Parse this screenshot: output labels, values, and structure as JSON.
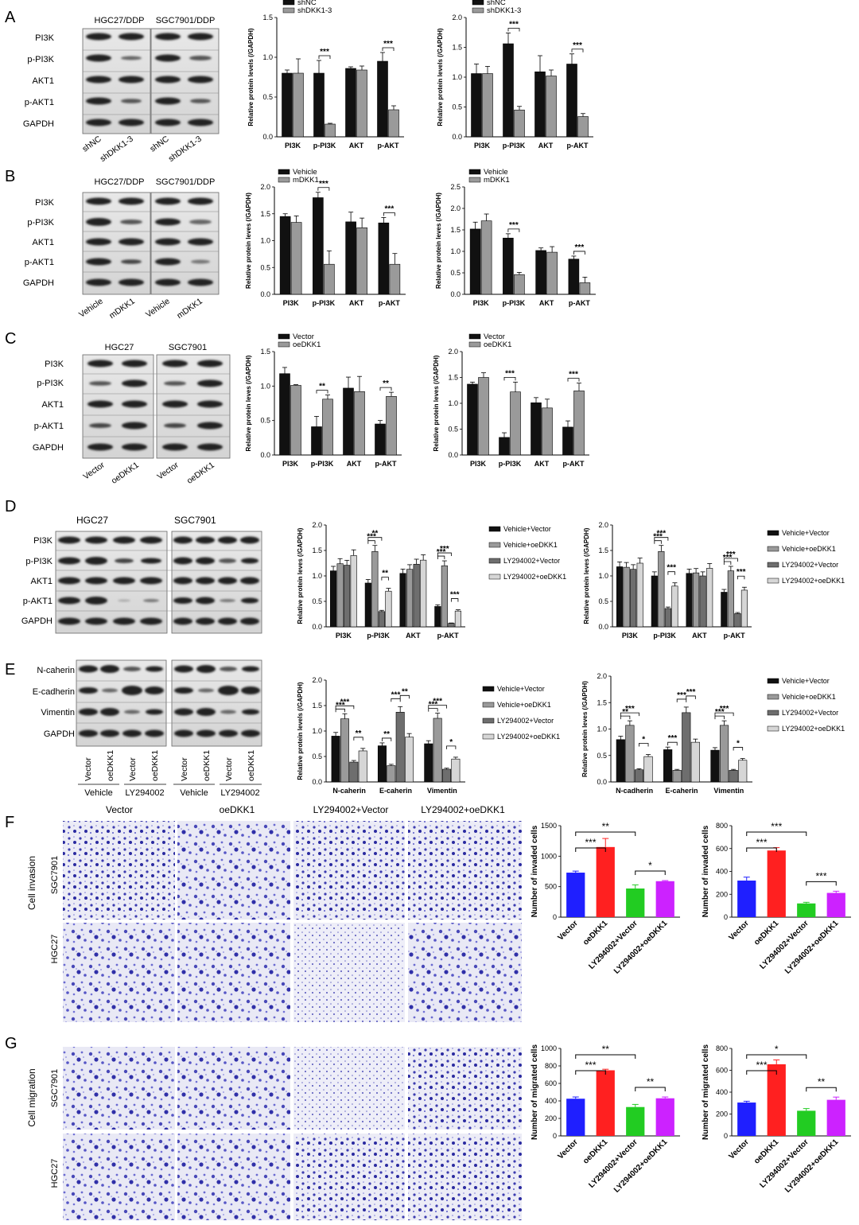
{
  "blots": {
    "A": {
      "letter": "A",
      "groups": [
        "HGC27/DDP",
        "SGC7901/DDP"
      ],
      "rows": [
        "PI3K",
        "p-PI3K",
        "AKT1",
        "p-AKT1",
        "GAPDH"
      ],
      "lanes": [
        "shNC",
        "shDKK1-3",
        "shNC",
        "shDKK1-3"
      ]
    },
    "B": {
      "letter": "B",
      "groups": [
        "HGC27/DDP",
        "SGC7901/DDP"
      ],
      "rows": [
        "PI3K",
        "p-PI3K",
        "AKT1",
        "p-AKT1",
        "GAPDH"
      ],
      "lanes": [
        "Vehicle",
        "mDKK1",
        "Vehicle",
        "mDKK1"
      ]
    },
    "C": {
      "letter": "C",
      "groups": [
        "HGC27",
        "SGC7901"
      ],
      "rows": [
        "PI3K",
        "p-PI3K",
        "AKT1",
        "p-AKT1",
        "GAPDH"
      ],
      "lanes": [
        "Vector",
        "oeDKK1",
        "Vector",
        "oeDKK1"
      ]
    },
    "D": {
      "letter": "D",
      "groups": [
        "HGC27",
        "SGC7901"
      ],
      "rows": [
        "PI3K",
        "p-PI3K",
        "AKT1",
        "p-AKT1",
        "GAPDH"
      ]
    },
    "E": {
      "letter": "E",
      "rows": [
        "N-caherin",
        "E-cadherin",
        "Vimentin",
        "GAPDH"
      ],
      "lanes": [
        "Vector",
        "oeDKK1",
        "Vector",
        "oeDKK1",
        "Vector",
        "oeDKK1",
        "Vector",
        "oeDKK1"
      ],
      "treatments": [
        "Vehicle",
        "LY294002",
        "Vehicle",
        "LY294002"
      ]
    },
    "F": {
      "letter": "F",
      "columns": [
        "Vector",
        "oeDKK1",
        "LY294002+Vector",
        "LY294002+oeDKK1"
      ],
      "side": "Cell invasion",
      "rows": [
        "SGC7901",
        "HGC27"
      ]
    },
    "G": {
      "letter": "G",
      "side": "Cell migration",
      "rows": [
        "SGC7901",
        "HGC27"
      ]
    }
  },
  "colors": {
    "dark": "#111111",
    "grey": "#9a9a9a",
    "mid": "#6e6e6e",
    "light": "#d6d6d6",
    "blue": "#1f1fff",
    "red": "#ff2020",
    "green": "#22cc22",
    "purple": "#cc22ff"
  },
  "chart_data": [
    {
      "id": "A1",
      "type": "bar",
      "ylabel": "Relative protein levels (/GAPDH)",
      "categories": [
        "PI3K",
        "p-PI3K",
        "AKT",
        "p-AKT"
      ],
      "ylim": [
        0,
        1.5
      ],
      "yticks": [
        "0.0",
        "0.5",
        "1.0",
        "1.5"
      ],
      "series": [
        {
          "name": "shNC",
          "values": [
            0.8,
            0.8,
            0.86,
            0.95
          ],
          "err": [
            0.04,
            0.16,
            0.02,
            0.11
          ]
        },
        {
          "name": "shDKK1-3",
          "values": [
            0.8,
            0.16,
            0.84,
            0.34
          ],
          "err": [
            0.18,
            0.01,
            0.05,
            0.05
          ]
        }
      ],
      "sig": [
        {
          "c": 1,
          "label": "***"
        },
        {
          "c": 3,
          "label": "***"
        }
      ]
    },
    {
      "id": "A2",
      "type": "bar",
      "ylabel": "Relative protein levels (/GAPDH)",
      "categories": [
        "PI3K",
        "p-PI3K",
        "AKT",
        "p-AKT"
      ],
      "ylim": [
        0,
        2.0
      ],
      "yticks": [
        "0.0",
        "0.5",
        "1.0",
        "1.5",
        "2.0"
      ],
      "series": [
        {
          "name": "shNC",
          "values": [
            1.06,
            1.56,
            1.09,
            1.22
          ],
          "err": [
            0.16,
            0.18,
            0.27,
            0.17
          ]
        },
        {
          "name": "shDKK1-3",
          "values": [
            1.06,
            0.45,
            1.02,
            0.34
          ],
          "err": [
            0.12,
            0.06,
            0.1,
            0.05
          ]
        }
      ],
      "sig": [
        {
          "c": 1,
          "label": "***"
        },
        {
          "c": 3,
          "label": "***"
        }
      ]
    },
    {
      "id": "B1",
      "type": "bar",
      "ylabel": "Relative protein leves (/GAPDH)",
      "categories": [
        "PI3K",
        "p-PI3K",
        "AKT",
        "p-AKT"
      ],
      "ylim": [
        0,
        2.0
      ],
      "yticks": [
        "0.0",
        "0.5",
        "1.0",
        "1.5",
        "2.0"
      ],
      "series": [
        {
          "name": "Vehicle",
          "values": [
            1.45,
            1.8,
            1.35,
            1.33
          ],
          "err": [
            0.05,
            0.1,
            0.18,
            0.1
          ]
        },
        {
          "name": "mDKK1",
          "values": [
            1.34,
            0.56,
            1.24,
            0.56
          ],
          "err": [
            0.12,
            0.25,
            0.18,
            0.2
          ]
        }
      ],
      "sig": [
        {
          "c": 1,
          "label": "***"
        },
        {
          "c": 3,
          "label": "***"
        }
      ]
    },
    {
      "id": "B2",
      "type": "bar",
      "ylabel": "Relative protein leves (/GAPDH)",
      "categories": [
        "PI3K",
        "p-PI3K",
        "AKT",
        "p-AKT"
      ],
      "ylim": [
        0,
        2.5
      ],
      "yticks": [
        "0.0",
        "0.5",
        "1.0",
        "1.5",
        "2.0",
        "2.5"
      ],
      "series": [
        {
          "name": "Vehicle",
          "values": [
            1.52,
            1.31,
            1.02,
            0.82
          ],
          "err": [
            0.16,
            0.1,
            0.06,
            0.07
          ]
        },
        {
          "name": "mDKK1",
          "values": [
            1.71,
            0.46,
            0.98,
            0.27
          ],
          "err": [
            0.16,
            0.05,
            0.13,
            0.13
          ]
        }
      ],
      "sig": [
        {
          "c": 1,
          "label": "***"
        },
        {
          "c": 3,
          "label": "***"
        }
      ]
    },
    {
      "id": "C1",
      "type": "bar",
      "ylabel": "Relative protein leves (/GAPDH)",
      "categories": [
        "PI3K",
        "p-PI3K",
        "AKT",
        "p-AKT"
      ],
      "ylim": [
        0,
        1.5
      ],
      "yticks": [
        "0.0",
        "0.5",
        "1.0",
        "1.5"
      ],
      "series": [
        {
          "name": "Vector",
          "values": [
            1.18,
            0.41,
            0.97,
            0.45
          ],
          "err": [
            0.09,
            0.15,
            0.16,
            0.05
          ]
        },
        {
          "name": "oeDKK1",
          "values": [
            1.01,
            0.81,
            0.92,
            0.85
          ],
          "err": [
            0.01,
            0.06,
            0.22,
            0.06
          ]
        }
      ],
      "sig": [
        {
          "c": 1,
          "label": "**"
        },
        {
          "c": 3,
          "label": "**"
        }
      ]
    },
    {
      "id": "C2",
      "type": "bar",
      "ylabel": "Relative protein leves (/GAPDH)",
      "categories": [
        "PI3K",
        "p-PI3K",
        "AKT",
        "p-AKT"
      ],
      "ylim": [
        0,
        2.0
      ],
      "yticks": [
        "0.0",
        "0.5",
        "1.0",
        "1.5",
        "2.0"
      ],
      "series": [
        {
          "name": "Vector",
          "values": [
            1.37,
            0.34,
            1.01,
            0.54
          ],
          "err": [
            0.04,
            0.09,
            0.1,
            0.12
          ]
        },
        {
          "name": "oeDKK1",
          "values": [
            1.5,
            1.22,
            0.91,
            1.24
          ],
          "err": [
            0.09,
            0.19,
            0.17,
            0.15
          ]
        }
      ],
      "sig": [
        {
          "c": 1,
          "label": "***"
        },
        {
          "c": 3,
          "label": "***"
        }
      ]
    },
    {
      "id": "D1",
      "type": "bar",
      "ylabel": "Relative protein leves (/GAPDH)",
      "categories": [
        "PI3K",
        "p-PI3K",
        "AKT",
        "p-AKT"
      ],
      "ylim": [
        0,
        2.0
      ],
      "yticks": [
        "0.0",
        "0.5",
        "1.0",
        "1.5",
        "2.0"
      ],
      "series": [
        {
          "name": "Vehicle+Vector",
          "values": [
            1.1,
            0.86,
            1.05,
            0.4
          ]
        },
        {
          "name": "Vehicle+oeDKK1",
          "values": [
            1.24,
            1.48,
            1.13,
            1.2
          ]
        },
        {
          "name": "LY294002+Vector",
          "values": [
            1.21,
            0.3,
            1.23,
            0.07
          ]
        },
        {
          "name": "LY294002+oeDKK1",
          "values": [
            1.4,
            0.7,
            1.31,
            0.31
          ]
        }
      ],
      "sig": [
        {
          "c": 1,
          "a": 0,
          "b": 1,
          "label": "***"
        },
        {
          "c": 1,
          "a": 0,
          "b": 2,
          "label": "**"
        },
        {
          "c": 1,
          "a": 2,
          "b": 3,
          "label": "**"
        },
        {
          "c": 3,
          "a": 0,
          "b": 1,
          "label": "***"
        },
        {
          "c": 3,
          "a": 0,
          "b": 2,
          "label": "***"
        },
        {
          "c": 3,
          "a": 2,
          "b": 3,
          "label": "***"
        }
      ]
    },
    {
      "id": "D2",
      "type": "bar",
      "ylabel": "Relative protein leves (/GAPDH)",
      "categories": [
        "PI3K",
        "p-PI3K",
        "AKT",
        "p-AKT"
      ],
      "ylim": [
        0,
        2.0
      ],
      "yticks": [
        "0.0",
        "0.5",
        "1.0",
        "1.5",
        "2.0"
      ],
      "series": [
        {
          "name": "Vehicle+Vector",
          "values": [
            1.18,
            1.0,
            1.05,
            0.68
          ]
        },
        {
          "name": "Vehicle+oeDKK1",
          "values": [
            1.17,
            1.48,
            1.06,
            1.1
          ]
        },
        {
          "name": "LY294002+Vector",
          "values": [
            1.13,
            0.36,
            1.0,
            0.26
          ]
        },
        {
          "name": "LY294002+oeDKK1",
          "values": [
            1.25,
            0.8,
            1.15,
            0.72
          ]
        }
      ],
      "sig": [
        {
          "c": 1,
          "a": 0,
          "b": 1,
          "label": "***"
        },
        {
          "c": 1,
          "a": 0,
          "b": 2,
          "label": "***"
        },
        {
          "c": 1,
          "a": 2,
          "b": 3,
          "label": "***"
        },
        {
          "c": 3,
          "a": 0,
          "b": 1,
          "label": "***"
        },
        {
          "c": 3,
          "a": 0,
          "b": 2,
          "label": "***"
        },
        {
          "c": 3,
          "a": 2,
          "b": 3,
          "label": "***"
        }
      ]
    },
    {
      "id": "E1",
      "type": "bar",
      "ylabel": "Relative protein levels (/GAPDH)",
      "categories": [
        "N-caherin",
        "E-caherin",
        "Vimentin"
      ],
      "ylim": [
        0,
        2.0
      ],
      "yticks": [
        "0.0",
        "0.5",
        "1.0",
        "1.5",
        "2.0"
      ],
      "series": [
        {
          "name": "Vehicle+Vector",
          "values": [
            0.9,
            0.71,
            0.75
          ]
        },
        {
          "name": "Vehicle+oeDKK1",
          "values": [
            1.24,
            0.32,
            1.25
          ]
        },
        {
          "name": "LY294002+Vector",
          "values": [
            0.39,
            1.37,
            0.25
          ]
        },
        {
          "name": "LY294002+oeDKK1",
          "values": [
            0.61,
            0.88,
            0.45
          ]
        }
      ],
      "sig": [
        {
          "c": 0,
          "a": 0,
          "b": 1,
          "label": "***"
        },
        {
          "c": 0,
          "a": 0,
          "b": 2,
          "label": "***"
        },
        {
          "c": 0,
          "a": 2,
          "b": 3,
          "label": "**"
        },
        {
          "c": 1,
          "a": 0,
          "b": 1,
          "label": "**"
        },
        {
          "c": 1,
          "a": 1,
          "b": 2,
          "label": "***"
        },
        {
          "c": 1,
          "a": 2,
          "b": 3,
          "label": "**"
        },
        {
          "c": 2,
          "a": 0,
          "b": 1,
          "label": "***"
        },
        {
          "c": 2,
          "a": 0,
          "b": 2,
          "label": "***"
        },
        {
          "c": 2,
          "a": 2,
          "b": 3,
          "label": "*"
        }
      ]
    },
    {
      "id": "E2",
      "type": "bar",
      "ylabel": "Relative protein leves (/GAPDH)",
      "categories": [
        "N-cadherin",
        "E-caherin",
        "Vimentin"
      ],
      "ylim": [
        0,
        2.0
      ],
      "yticks": [
        "0.0",
        "0.5",
        "1.0",
        "1.5",
        "2.0"
      ],
      "series": [
        {
          "name": "Vehicle+Vector",
          "values": [
            0.8,
            0.61,
            0.6
          ]
        },
        {
          "name": "Vehicle+oeDKK1",
          "values": [
            1.07,
            0.22,
            1.07
          ]
        },
        {
          "name": "LY294002+Vector",
          "values": [
            0.23,
            1.31,
            0.22
          ]
        },
        {
          "name": "LY294002+oeDKK1",
          "values": [
            0.48,
            0.75,
            0.41
          ]
        }
      ],
      "sig": [
        {
          "c": 0,
          "a": 0,
          "b": 1,
          "label": "**"
        },
        {
          "c": 0,
          "a": 0,
          "b": 2,
          "label": "***"
        },
        {
          "c": 0,
          "a": 2,
          "b": 3,
          "label": "*"
        },
        {
          "c": 1,
          "a": 0,
          "b": 1,
          "label": "***"
        },
        {
          "c": 1,
          "a": 1,
          "b": 2,
          "label": "***"
        },
        {
          "c": 1,
          "a": 2,
          "b": 3,
          "label": "***"
        },
        {
          "c": 2,
          "a": 0,
          "b": 1,
          "label": "***"
        },
        {
          "c": 2,
          "a": 0,
          "b": 2,
          "label": "***"
        },
        {
          "c": 2,
          "a": 2,
          "b": 3,
          "label": "*"
        }
      ]
    },
    {
      "id": "F1",
      "type": "bar",
      "ylabel": "Number of invaded cells",
      "categories": [
        "Vector",
        "oeDKK1",
        "LY294002+Vector",
        "LY294002+oeDKK1"
      ],
      "ylim": [
        0,
        1500
      ],
      "yticks": [
        "0",
        "500",
        "1000",
        "1500"
      ],
      "values": [
        730,
        1150,
        470,
        590
      ],
      "err": [
        25,
        140,
        60,
        10
      ],
      "sig": [
        {
          "a": 0,
          "b": 1,
          "label": "***"
        },
        {
          "a": 0,
          "b": 2,
          "label": "**"
        },
        {
          "a": 2,
          "b": 3,
          "label": "*"
        }
      ]
    },
    {
      "id": "F2",
      "type": "bar",
      "ylabel": "Number of invaded cells",
      "categories": [
        "Vector",
        "oeDKK1",
        "LY294002+Vector",
        "LY294002+oeDKK1"
      ],
      "ylim": [
        0,
        800
      ],
      "yticks": [
        "0",
        "200",
        "400",
        "600",
        "800"
      ],
      "values": [
        320,
        583,
        120,
        212
      ],
      "err": [
        30,
        25,
        10,
        15
      ],
      "sig": [
        {
          "a": 0,
          "b": 1,
          "label": "***"
        },
        {
          "a": 0,
          "b": 2,
          "label": "***"
        },
        {
          "a": 2,
          "b": 3,
          "label": "***"
        }
      ]
    },
    {
      "id": "G1",
      "type": "bar",
      "ylabel": "Number of migrated cells",
      "categories": [
        "Vector",
        "oeDKK1",
        "LY294002+Vector",
        "LY294002+oeDKK1"
      ],
      "ylim": [
        0,
        1000
      ],
      "yticks": [
        "0",
        "200",
        "400",
        "600",
        "800",
        "1000"
      ],
      "values": [
        425,
        750,
        330,
        430
      ],
      "err": [
        20,
        12,
        30,
        15
      ],
      "sig": [
        {
          "a": 0,
          "b": 1,
          "label": "***"
        },
        {
          "a": 0,
          "b": 2,
          "label": "**"
        },
        {
          "a": 2,
          "b": 3,
          "label": "**"
        }
      ]
    },
    {
      "id": "G2",
      "type": "bar",
      "ylabel": "Number of migrated cells",
      "categories": [
        "Vector",
        "oeDKK1",
        "LY294002+Vector",
        "LY294002+oeDKK1"
      ],
      "ylim": [
        0,
        800
      ],
      "yticks": [
        "0",
        "200",
        "400",
        "600",
        "800"
      ],
      "values": [
        305,
        655,
        230,
        330
      ],
      "err": [
        12,
        40,
        20,
        25
      ],
      "sig": [
        {
          "a": 0,
          "b": 1,
          "label": "***"
        },
        {
          "a": 0,
          "b": 2,
          "label": "*"
        },
        {
          "a": 2,
          "b": 3,
          "label": "**"
        }
      ]
    }
  ]
}
